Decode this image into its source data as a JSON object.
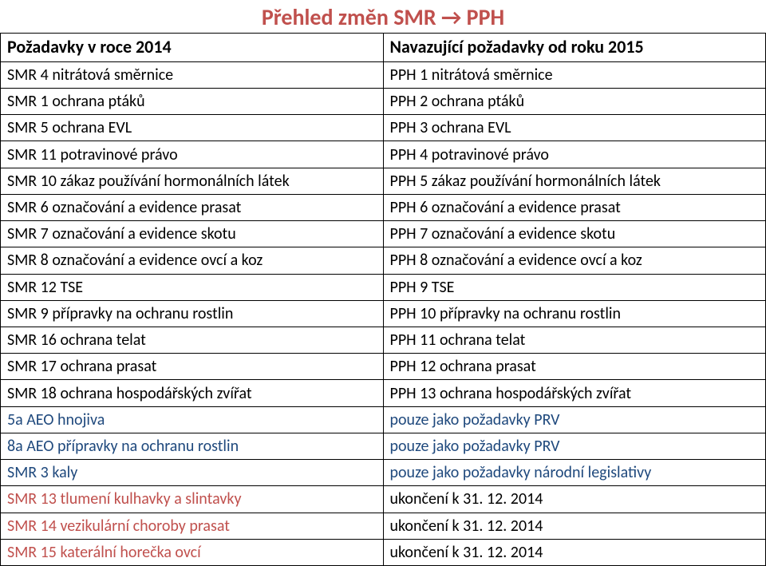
{
  "title": "Přehled změn SMR → PPH",
  "title_color": "#c0504d",
  "title_fontsize": 28,
  "header_left": "Požadavky v roce 2014",
  "header_right": "Navazující požadavky od roku 2015",
  "header_fontsize": 22,
  "cell_fontsize": 20,
  "text_black": "#000000",
  "text_blue": "#1f497d",
  "text_red": "#c0504d",
  "border_color": "#000000",
  "rows": [
    {
      "left": "SMR 4 nitrátová směrnice",
      "right": "PPH 1 nitrátová směrnice",
      "lcolor": "#000000",
      "rcolor": "#000000"
    },
    {
      "left": "SMR 1 ochrana ptáků",
      "right": "PPH 2 ochrana ptáků",
      "lcolor": "#000000",
      "rcolor": "#000000"
    },
    {
      "left": "SMR 5 ochrana EVL",
      "right": "PPH 3 ochrana EVL",
      "lcolor": "#000000",
      "rcolor": "#000000"
    },
    {
      "left": "SMR 11 potravinové právo",
      "right": "PPH 4 potravinové právo",
      "lcolor": "#000000",
      "rcolor": "#000000"
    },
    {
      "left": "SMR 10 zákaz používání hormonálních látek",
      "right": "PPH 5 zákaz používání hormonálních látek",
      "lcolor": "#000000",
      "rcolor": "#000000"
    },
    {
      "left": "SMR 6 označování a evidence prasat",
      "right": "PPH 6 označování a evidence prasat",
      "lcolor": "#000000",
      "rcolor": "#000000"
    },
    {
      "left": "SMR 7 označování a evidence skotu",
      "right": "PPH 7 označování a evidence skotu",
      "lcolor": "#000000",
      "rcolor": "#000000"
    },
    {
      "left": "SMR 8 označování a evidence ovcí a koz",
      "right": "PPH 8 označování a evidence ovcí a koz",
      "lcolor": "#000000",
      "rcolor": "#000000"
    },
    {
      "left": "SMR 12 TSE",
      "right": "PPH 9 TSE",
      "lcolor": "#000000",
      "rcolor": "#000000"
    },
    {
      "left": "SMR 9 přípravky na ochranu rostlin",
      "right": "PPH 10 přípravky na ochranu rostlin",
      "lcolor": "#000000",
      "rcolor": "#000000"
    },
    {
      "left": "SMR 16 ochrana telat",
      "right": "PPH 11 ochrana telat",
      "lcolor": "#000000",
      "rcolor": "#000000"
    },
    {
      "left": "SMR 17 ochrana prasat",
      "right": "PPH 12 ochrana prasat",
      "lcolor": "#000000",
      "rcolor": "#000000"
    },
    {
      "left": "SMR 18 ochrana hospodářských zvířat",
      "right": "PPH 13 ochrana hospodářských zvířat",
      "lcolor": "#000000",
      "rcolor": "#000000"
    },
    {
      "left": "5a AEO hnojiva",
      "right": "pouze jako požadavky PRV",
      "lcolor": "#1f497d",
      "rcolor": "#1f497d"
    },
    {
      "left": "8a AEO přípravky na ochranu rostlin",
      "right": "pouze jako požadavky PRV",
      "lcolor": "#1f497d",
      "rcolor": "#1f497d"
    },
    {
      "left": "SMR 3 kaly",
      "right": "pouze jako požadavky národní legislativy",
      "lcolor": "#1f497d",
      "rcolor": "#1f497d"
    },
    {
      "left": "SMR 13 tlumení kulhavky a slintavky",
      "right": "ukončení k 31. 12. 2014",
      "lcolor": "#c0504d",
      "rcolor": "#000000"
    },
    {
      "left": "SMR 14 vezikulární choroby prasat",
      "right": "ukončení k 31. 12. 2014",
      "lcolor": "#c0504d",
      "rcolor": "#000000"
    },
    {
      "left": "SMR 15 katerální horečka ovcí",
      "right": "ukončení k 31. 12. 2014",
      "lcolor": "#c0504d",
      "rcolor": "#000000"
    }
  ]
}
